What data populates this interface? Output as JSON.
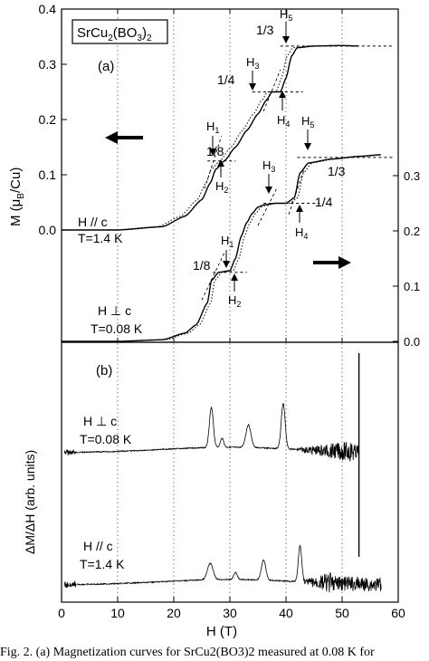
{
  "chart_data": [
    {
      "panel": "(a)",
      "type": "line",
      "compound": "SrCu2(BO3)2",
      "xlim": [
        0,
        60
      ],
      "ylim_left": [
        0,
        0.4
      ],
      "ylim_right": [
        0.0,
        0.4
      ],
      "ylabel": "M (μB/Cu)",
      "x_ticks": [
        0,
        10,
        20,
        30,
        40,
        50,
        60
      ],
      "y_ticks_left": [
        "0.0",
        "0.1",
        "0.2",
        "0.3",
        "0.4"
      ],
      "y_ticks_right": [
        "0.0",
        "0.1",
        "0.2",
        "0.3"
      ],
      "grid": "vertical dotted lines every 10 T",
      "plateaus": [
        "1/8",
        "1/4",
        "1/3"
      ],
      "series": [
        {
          "name": "H // c",
          "condition": "T=1.4 K",
          "axis": "left",
          "x": [
            0,
            10,
            18,
            22,
            25,
            26.5,
            27.5,
            29,
            31,
            33,
            35,
            36.5,
            37.5,
            39,
            40,
            41,
            42,
            45,
            50,
            53
          ],
          "y": [
            0.0,
            0.0,
            0.006,
            0.025,
            0.055,
            0.085,
            0.11,
            0.125,
            0.15,
            0.18,
            0.21,
            0.235,
            0.25,
            0.25,
            0.275,
            0.315,
            0.33,
            0.333,
            0.334,
            0.333
          ]
        },
        {
          "name": "H ⊥ c",
          "condition": "T=0.08 K",
          "axis": "right",
          "x": [
            0,
            10,
            18,
            22,
            24,
            26,
            26.7,
            28,
            30,
            31,
            32,
            33,
            34,
            35,
            36,
            38,
            40,
            41.5,
            42.5,
            44,
            48,
            53,
            57
          ],
          "y": [
            0.0,
            0.0,
            0.003,
            0.015,
            0.03,
            0.07,
            0.11,
            0.125,
            0.128,
            0.15,
            0.19,
            0.215,
            0.232,
            0.243,
            0.247,
            0.25,
            0.25,
            0.26,
            0.305,
            0.323,
            0.33,
            0.335,
            0.338
          ]
        }
      ],
      "annotations": [
        {
          "text": "1/8",
          "markers": [
            "H1",
            "H2"
          ]
        },
        {
          "text": "1/4",
          "markers": [
            "H3",
            "H4"
          ]
        },
        {
          "text": "1/3",
          "markers": [
            "H5"
          ]
        }
      ]
    },
    {
      "panel": "(b)",
      "type": "line",
      "xlabel": "H (T)",
      "ylabel": "ΔM/ΔH (arb. units)",
      "xlim": [
        0,
        60
      ],
      "series": [
        {
          "name": "H ⊥ c",
          "condition": "T=0.08 K",
          "peaks_at_T": [
            26.7,
            28.6,
            33.3,
            39.5
          ],
          "noisy_region_T": [
            42,
            53
          ]
        },
        {
          "name": "H // c",
          "condition": "T=1.4 K",
          "peaks_at_T": [
            26.5,
            31,
            36,
            42.5
          ],
          "noisy_region_T": [
            43,
            57
          ]
        }
      ]
    }
  ],
  "labels": {
    "panel_a": "(a)",
    "panel_b": "(b)",
    "compound_box": "SrCu",
    "compound_sub1": "2",
    "compound_mid": "(BO",
    "compound_sub2": "3",
    "compound_end": ")",
    "compound_sub3": "2",
    "ylabel_a_pre": "M (μ",
    "ylabel_a_sub": "B",
    "ylabel_a_post": "/Cu)",
    "ylabel_b": "ΔM/ΔH (arb. units)",
    "xlabel": "H (T)",
    "hpar": "H // c",
    "hpar_t": "T=1.4 K",
    "hperp": "H ⊥ c",
    "hperp_t": "T=0.08 K",
    "frac_18": "1/8",
    "frac_14": "1/4",
    "frac_13": "1/3",
    "H": "H",
    "s1": "1",
    "s2": "2",
    "s3": "3",
    "s4": "4",
    "s5": "5"
  },
  "caption": "Fig. 2. (a) Magnetization curves for SrCu2(BO3)2 measured at 0.08 K for"
}
